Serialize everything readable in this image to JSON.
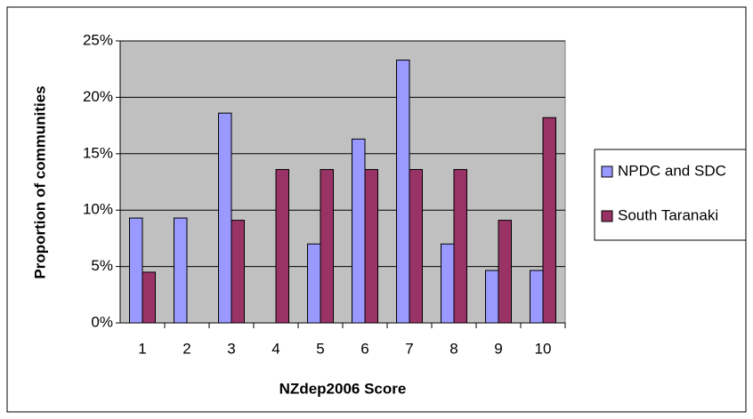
{
  "chart_data": {
    "type": "bar",
    "xlabel": "NZdep2006 Score",
    "ylabel": "Proportion of communities",
    "categories": [
      "1",
      "2",
      "3",
      "4",
      "5",
      "6",
      "7",
      "8",
      "9",
      "10"
    ],
    "series": [
      {
        "name": "NPDC and SDC",
        "color": "#9999ff",
        "values": [
          9.3,
          9.3,
          18.6,
          0,
          7.0,
          16.3,
          23.3,
          7.0,
          4.65,
          4.65
        ]
      },
      {
        "name": "South Taranaki",
        "color": "#993366",
        "values": [
          4.5,
          0,
          9.1,
          13.6,
          13.6,
          13.6,
          13.6,
          13.6,
          9.1,
          18.2
        ]
      }
    ],
    "ylim": [
      0,
      25
    ],
    "yticks": [
      {
        "value": 0,
        "label": "0%"
      },
      {
        "value": 5,
        "label": "5%"
      },
      {
        "value": 10,
        "label": "10%"
      },
      {
        "value": 15,
        "label": "15%"
      },
      {
        "value": 20,
        "label": "20%"
      },
      {
        "value": 25,
        "label": "25%"
      }
    ],
    "grid": true,
    "plot_background": "#c0c0c0",
    "legend": "right"
  }
}
